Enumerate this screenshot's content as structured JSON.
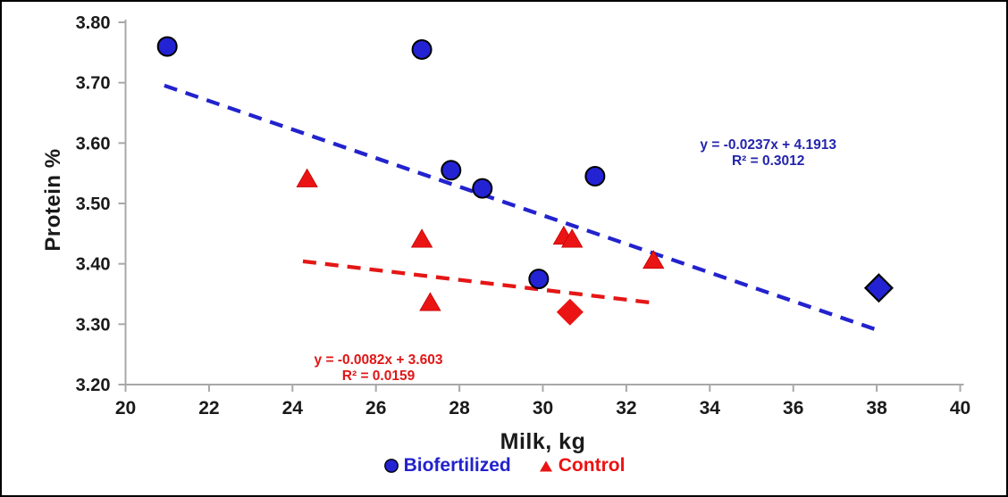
{
  "figure": {
    "background": "#FFFFFF",
    "border_color": "#000000"
  },
  "chart_data": {
    "type": "scatter",
    "xlabel": "Milk, kg",
    "ylabel": "Protein %",
    "xlim": [
      20,
      40
    ],
    "ylim": [
      3.2,
      3.8
    ],
    "grid": false,
    "legend_position": "bottom",
    "axis_color": "#A8A8A8",
    "tick_label_color": "#1a1a1a",
    "xticks": {
      "values": [
        20,
        22,
        24,
        26,
        28,
        30,
        32,
        34,
        36,
        38,
        40
      ],
      "labels": [
        "20",
        "22",
        "24",
        "26",
        "28",
        "30",
        "32",
        "34",
        "36",
        "38",
        "40"
      ]
    },
    "yticks": {
      "values": [
        3.2,
        3.3,
        3.4,
        3.5,
        3.6,
        3.7,
        3.8
      ],
      "labels": [
        "3.20",
        "3.30",
        "3.40",
        "3.50",
        "3.60",
        "3.70",
        "3.80"
      ]
    },
    "series": [
      {
        "name": "Biofertilized",
        "marker": "circle",
        "fill": "#2323D4",
        "outline": "#000000",
        "points": [
          [
            21.0,
            3.76
          ],
          [
            27.1,
            3.755
          ],
          [
            27.8,
            3.555
          ],
          [
            28.55,
            3.525
          ],
          [
            29.9,
            3.375
          ],
          [
            31.25,
            3.545
          ]
        ],
        "diamond_point": [
          38.05,
          3.36
        ],
        "diamond_outline": "#000000",
        "trendline": {
          "style": "dashed",
          "color": "#2222CE",
          "slope": -0.0237,
          "intercept": 4.1913,
          "x_start": 20.93,
          "x_end": 38.0,
          "equation": "y = -0.0237x + 4.1913",
          "r_squared": "R² = 0.3012",
          "label_color": "#2424AD",
          "label_anchor": [
            35.4,
            3.584
          ]
        }
      },
      {
        "name": "Control",
        "marker": "triangle",
        "fill": "#EB1414",
        "outline": "#C50000",
        "points": [
          [
            24.35,
            3.54
          ],
          [
            27.1,
            3.44
          ],
          [
            27.3,
            3.335
          ],
          [
            30.5,
            3.445
          ],
          [
            30.7,
            3.44
          ],
          [
            32.65,
            3.405
          ]
        ],
        "diamond_point": [
          30.65,
          3.32
        ],
        "diamond_outline": "none",
        "trendline": {
          "style": "dashed",
          "color": "#E51616",
          "slope": -0.0082,
          "intercept": 3.603,
          "x_start": 24.25,
          "x_end": 32.7,
          "equation": "y = -0.0082x + 3.603",
          "r_squared": "R² = 0.0159",
          "label_color": "#E01616",
          "label_anchor": [
            26.06,
            3.228
          ]
        }
      }
    ]
  }
}
